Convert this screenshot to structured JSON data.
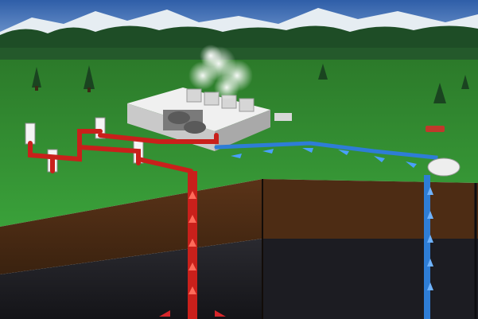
{
  "scene": {
    "subject": "geothermal-power-plant",
    "palette": {
      "sky": "#3f6fb7",
      "mountains": "#e8eef2",
      "forest": "#1e4d26",
      "grass": "#2f8f2e",
      "soil": "#4a2b14",
      "rock": "#1f1f24",
      "hot_pipe": "#c9201b",
      "cold_pipe": "#2e7dd6",
      "plant_building": "#dcdcdc"
    }
  }
}
